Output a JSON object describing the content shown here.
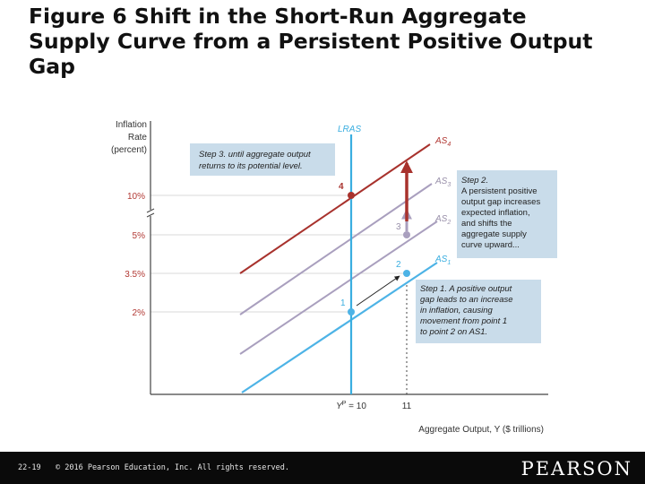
{
  "slide": {
    "title": "Figure 6 Shift in the Short-Run Aggregate Supply Curve from a Persistent Positive Output Gap",
    "footer": {
      "page_number": "22-19",
      "copyright": "© 2016 Pearson Education, Inc. All rights reserved.",
      "brand": "PEARSON"
    }
  },
  "figure": {
    "y_axis_label": [
      "Inflation",
      "Rate",
      "(percent)"
    ],
    "x_axis_label": "Aggregate Output, Y ($ trillions)",
    "lras_label": "LRAS",
    "y_ticks": [
      {
        "value": 10,
        "label": "10%"
      },
      {
        "value": 5,
        "label": "5%"
      },
      {
        "value": 3.5,
        "label": "3.5%"
      },
      {
        "value": 2,
        "label": "2%"
      }
    ],
    "x_ticks": [
      {
        "value": 10,
        "label": "YP = 10",
        "base": "Y",
        "sup": "P",
        "rest": " = 10"
      },
      {
        "value": 11,
        "label": "11"
      }
    ],
    "curves": [
      {
        "name": "AS1",
        "base": "AS",
        "sub": "1",
        "color": "#4db3e6"
      },
      {
        "name": "AS2",
        "base": "AS",
        "sub": "2",
        "color": "#a99fbe"
      },
      {
        "name": "AS3",
        "base": "AS",
        "sub": "3",
        "color": "#a99fbe"
      },
      {
        "name": "AS4",
        "base": "AS",
        "sub": "4",
        "color": "#a8322d"
      }
    ],
    "points": [
      {
        "label": "1",
        "output": 10,
        "inflation": 2
      },
      {
        "label": "2",
        "output": 11,
        "inflation": 3.5
      },
      {
        "label": "3",
        "output": 11,
        "inflation": 5
      },
      {
        "label": "4",
        "output": 10,
        "inflation": 10
      }
    ],
    "callouts": {
      "step1": [
        "Step 1. A positive output",
        "gap leads to an increase",
        "in inflation, causing",
        "movement from point 1",
        "to point 2 on AS1."
      ],
      "step2": [
        "Step 2.",
        "A persistent positive",
        "output gap increases",
        "expected inflation,",
        "and shifts the",
        "aggregate supply",
        "curve upward..."
      ],
      "step3": [
        "Step 3. until aggregate output",
        "returns to its potential level."
      ]
    },
    "colors": {
      "lras": "#3aaee0",
      "as1": "#4db3e6",
      "as_mid": "#a99fbe",
      "as4": "#a8322d",
      "callout_bg": "#c9dcea",
      "grid": "#d9d9d9",
      "label_red": "#b23a35"
    }
  }
}
